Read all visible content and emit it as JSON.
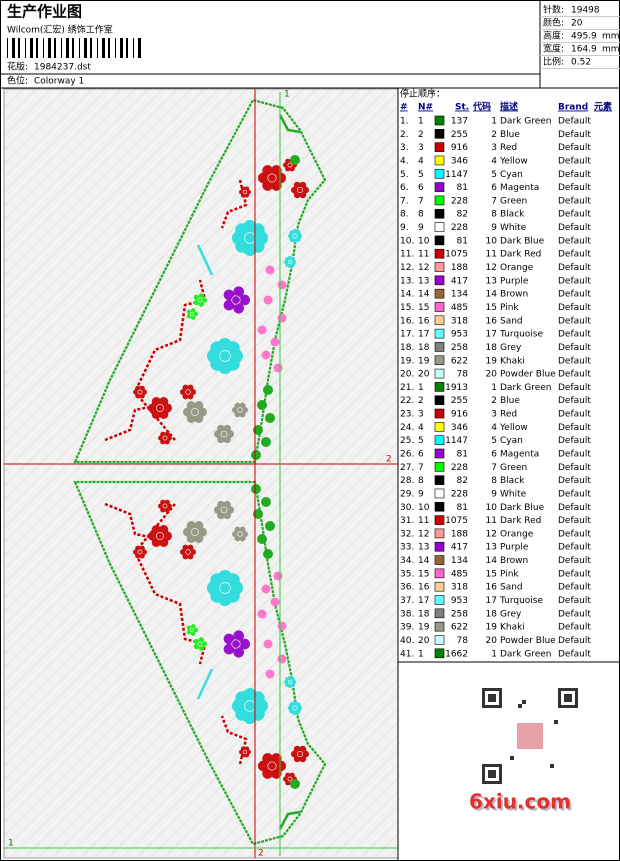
{
  "header": {
    "title": "生产作业图",
    "subtitle": "Wilcom(汇宏) 绣饰工作室",
    "design_label": "花版:",
    "design_file": "1984237.dst",
    "colorway_label": "色位:",
    "colorway": "Colorway 1"
  },
  "info": [
    {
      "label": "针数:",
      "value": 19498
    },
    {
      "label": "颜色:",
      "value": 20
    },
    {
      "label": "高度:",
      "value": 495.9,
      "unit": "mm"
    },
    {
      "label": "宽度:",
      "value": 164.9,
      "unit": "mm"
    },
    {
      "label": "比例:",
      "value": 0.52
    }
  ],
  "table": {
    "title": "停止顺序：",
    "columns": [
      "#",
      "N#",
      "St.",
      "代码",
      "描述",
      "Brand",
      "元素"
    ],
    "rows": [
      [
        "1.",
        1,
        "#008000",
        137,
        1,
        "Dark Green",
        "Default"
      ],
      [
        "2.",
        2,
        "#000000",
        255,
        2,
        "Blue",
        "Default"
      ],
      [
        "3.",
        3,
        "#cc0000",
        916,
        3,
        "Red",
        "Default"
      ],
      [
        "4.",
        4,
        "#ffff00",
        346,
        4,
        "Yellow",
        "Default"
      ],
      [
        "5.",
        5,
        "#00ffff",
        1147,
        5,
        "Cyan",
        "Default"
      ],
      [
        "6.",
        6,
        "#9900cc",
        81,
        6,
        "Magenta",
        "Default"
      ],
      [
        "7.",
        7,
        "#00ff00",
        228,
        7,
        "Green",
        "Default"
      ],
      [
        "8.",
        8,
        "#000000",
        82,
        8,
        "Black",
        "Default"
      ],
      [
        "9.",
        9,
        "#ffffff",
        228,
        9,
        "White",
        "Default"
      ],
      [
        "10.",
        10,
        "#000000",
        81,
        10,
        "Dark Blue",
        "Default"
      ],
      [
        "11.",
        11,
        "#cc0000",
        1075,
        11,
        "Dark Red",
        "Default"
      ],
      [
        "12.",
        12,
        "#ff9999",
        188,
        12,
        "Orange",
        "Default"
      ],
      [
        "13.",
        13,
        "#9900cc",
        417,
        13,
        "Purple",
        "Default"
      ],
      [
        "14.",
        14,
        "#996633",
        134,
        14,
        "Brown",
        "Default"
      ],
      [
        "15.",
        15,
        "#ff66cc",
        485,
        15,
        "Pink",
        "Default"
      ],
      [
        "16.",
        16,
        "#ffcc99",
        318,
        16,
        "Sand",
        "Default"
      ],
      [
        "17.",
        17,
        "#66ffff",
        953,
        17,
        "Turquoise",
        "Default"
      ],
      [
        "18.",
        18,
        "#808080",
        258,
        18,
        "Grey",
        "Default"
      ],
      [
        "19.",
        19,
        "#999988",
        622,
        19,
        "Khaki",
        "Default"
      ],
      [
        "20.",
        20,
        "#ccffff",
        78,
        20,
        "Powder Blue",
        "Default"
      ],
      [
        "21.",
        1,
        "#008000",
        1913,
        1,
        "Dark Green",
        "Default"
      ],
      [
        "22.",
        2,
        "#000000",
        255,
        2,
        "Blue",
        "Default"
      ],
      [
        "23.",
        3,
        "#cc0000",
        916,
        3,
        "Red",
        "Default"
      ],
      [
        "24.",
        4,
        "#ffff00",
        346,
        4,
        "Yellow",
        "Default"
      ],
      [
        "25.",
        5,
        "#00ffff",
        1147,
        5,
        "Cyan",
        "Default"
      ],
      [
        "26.",
        6,
        "#9900cc",
        81,
        6,
        "Magenta",
        "Default"
      ],
      [
        "27.",
        7,
        "#00ff00",
        228,
        7,
        "Green",
        "Default"
      ],
      [
        "28.",
        8,
        "#000000",
        82,
        8,
        "Black",
        "Default"
      ],
      [
        "29.",
        9,
        "#ffffff",
        228,
        9,
        "White",
        "Default"
      ],
      [
        "30.",
        10,
        "#000000",
        81,
        10,
        "Dark Blue",
        "Default"
      ],
      [
        "31.",
        11,
        "#cc0000",
        1075,
        11,
        "Dark Red",
        "Default"
      ],
      [
        "32.",
        12,
        "#ff9999",
        188,
        12,
        "Orange",
        "Default"
      ],
      [
        "33.",
        13,
        "#9900cc",
        417,
        13,
        "Purple",
        "Default"
      ],
      [
        "34.",
        14,
        "#996633",
        134,
        14,
        "Brown",
        "Default"
      ],
      [
        "35.",
        15,
        "#ff66cc",
        485,
        15,
        "Pink",
        "Default"
      ],
      [
        "36.",
        16,
        "#ffcc99",
        318,
        16,
        "Sand",
        "Default"
      ],
      [
        "37.",
        17,
        "#66ffff",
        953,
        17,
        "Turquoise",
        "Default"
      ],
      [
        "38.",
        18,
        "#808080",
        258,
        18,
        "Grey",
        "Default"
      ],
      [
        "39.",
        19,
        "#999988",
        622,
        19,
        "Khaki",
        "Default"
      ],
      [
        "40.",
        20,
        "#ccffff",
        78,
        20,
        "Powder Blue",
        "Default"
      ],
      [
        "41.",
        1,
        "#008000",
        1662,
        1,
        "Dark Green",
        "Default"
      ]
    ]
  },
  "design": {
    "markers": [
      "1",
      "2",
      "1",
      "2"
    ]
  },
  "watermark": "6xiu.com"
}
